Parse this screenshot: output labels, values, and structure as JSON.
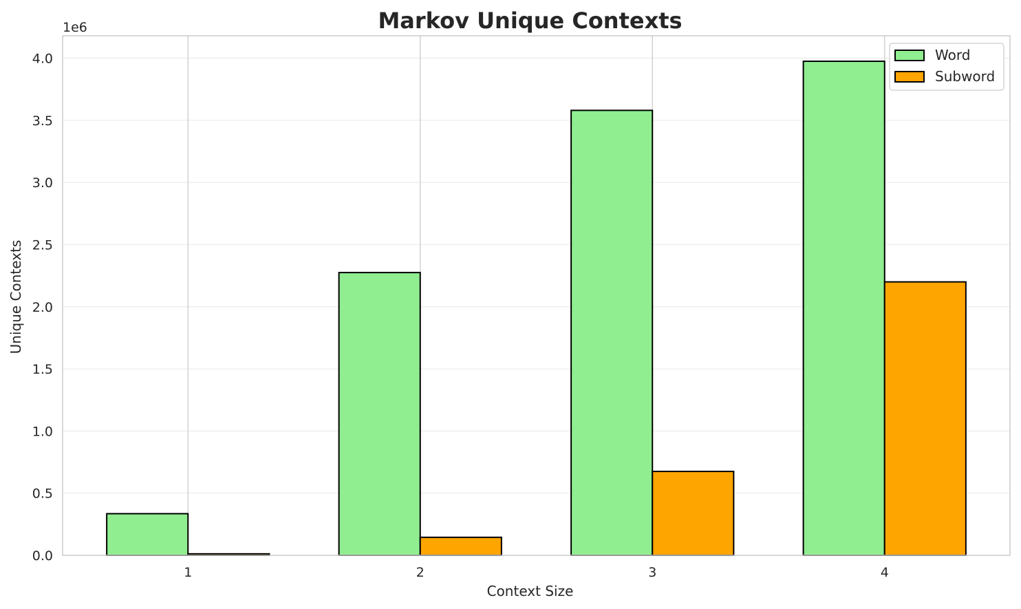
{
  "chart_data": {
    "type": "bar",
    "title": "Markov Unique Contexts",
    "xlabel": "Context Size",
    "ylabel": "Unique Contexts",
    "categories": [
      "1",
      "2",
      "3",
      "4"
    ],
    "series": [
      {
        "name": "Word",
        "values": [
          335000,
          2275000,
          3580000,
          3975000
        ],
        "color": "#90EE90"
      },
      {
        "name": "Subword",
        "values": [
          12000,
          145000,
          675000,
          2200000
        ],
        "color": "#FFA500"
      }
    ],
    "ylim": [
      0,
      4180000
    ],
    "y_ticks": [
      0,
      500000,
      1000000,
      1500000,
      2000000,
      2500000,
      3000000,
      3500000,
      4000000
    ],
    "y_tick_labels": [
      "0.0",
      "0.5",
      "1.0",
      "1.5",
      "2.0",
      "2.5",
      "3.0",
      "3.5",
      "4.0"
    ],
    "y_offset_label": "1e6",
    "grid": true,
    "legend_position": "top-right",
    "bar_edge_color": "#000000",
    "frame_color": "#cccccc",
    "grid_color": "#ebebeb"
  }
}
